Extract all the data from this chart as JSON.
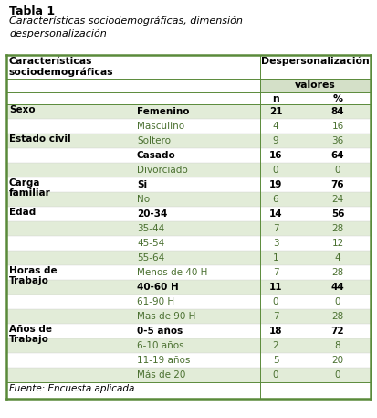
{
  "title_bold": "Tabla 1",
  "title_italic": "Características sociodemográficas, dimensión\ndespersonalización",
  "col_header1": "Características\nsociodemográficas",
  "col_header2": "Despersonalización",
  "col_header3": "valores",
  "col_n": "n",
  "col_pct": "%",
  "footer": "Fuente: Encuesta aplicada.",
  "rows": [
    {
      "cat": "Sexo",
      "sub": "Femenino",
      "n": "21",
      "pct": "84",
      "bold": true,
      "alt": true
    },
    {
      "cat": "",
      "sub": "Masculino",
      "n": "4",
      "pct": "16",
      "bold": false,
      "alt": false
    },
    {
      "cat": "Estado civil",
      "sub": "Soltero",
      "n": "9",
      "pct": "36",
      "bold": false,
      "alt": true
    },
    {
      "cat": "",
      "sub": "Casado",
      "n": "16",
      "pct": "64",
      "bold": true,
      "alt": false
    },
    {
      "cat": "",
      "sub": "Divorciado",
      "n": "0",
      "pct": "0",
      "bold": false,
      "alt": true
    },
    {
      "cat": "Carga\nfamiliar",
      "sub": "Si",
      "n": "19",
      "pct": "76",
      "bold": true,
      "alt": false
    },
    {
      "cat": "",
      "sub": "No",
      "n": "6",
      "pct": "24",
      "bold": false,
      "alt": true
    },
    {
      "cat": "Edad",
      "sub": "20-34",
      "n": "14",
      "pct": "56",
      "bold": true,
      "alt": false
    },
    {
      "cat": "",
      "sub": "35-44",
      "n": "7",
      "pct": "28",
      "bold": false,
      "alt": true
    },
    {
      "cat": "",
      "sub": "45-54",
      "n": "3",
      "pct": "12",
      "bold": false,
      "alt": false
    },
    {
      "cat": "",
      "sub": "55-64",
      "n": "1",
      "pct": "4",
      "bold": false,
      "alt": true
    },
    {
      "cat": "Horas de\nTrabajo",
      "sub": "Menos de 40 H",
      "n": "7",
      "pct": "28",
      "bold": false,
      "alt": false
    },
    {
      "cat": "",
      "sub": "40-60 H",
      "n": "11",
      "pct": "44",
      "bold": true,
      "alt": true
    },
    {
      "cat": "",
      "sub": "61-90 H",
      "n": "0",
      "pct": "0",
      "bold": false,
      "alt": false
    },
    {
      "cat": "",
      "sub": "Mas de 90 H",
      "n": "7",
      "pct": "28",
      "bold": false,
      "alt": true
    },
    {
      "cat": "Años de\nTrabajo",
      "sub": "0-5 años",
      "n": "18",
      "pct": "72",
      "bold": true,
      "alt": false
    },
    {
      "cat": "",
      "sub": "6-10 años",
      "n": "2",
      "pct": "8",
      "bold": false,
      "alt": true
    },
    {
      "cat": "",
      "sub": "11-19 años",
      "n": "5",
      "pct": "20",
      "bold": false,
      "alt": false
    },
    {
      "cat": "",
      "sub": "Más de 20",
      "n": "0",
      "pct": "0",
      "bold": false,
      "alt": true
    }
  ],
  "bg_alt": "#e2ecd8",
  "bg_white": "#ffffff",
  "bg_valores": "#d4e0c8",
  "border_color": "#5a8a3a",
  "text_green": "#4a7030",
  "text_black": "#000000",
  "fig_w": 4.13,
  "fig_h": 4.57,
  "dpi": 100
}
